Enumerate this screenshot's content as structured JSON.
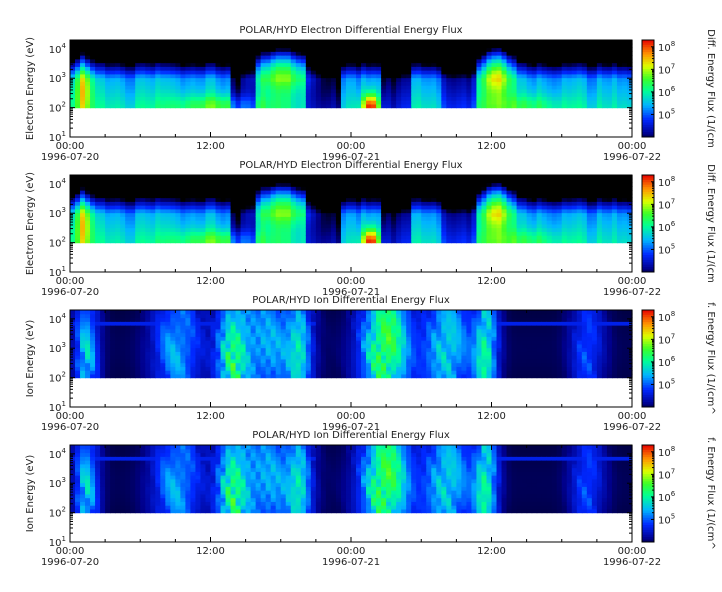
{
  "chart_data": [
    {
      "type": "heatmap",
      "title": "POLAR/HYD  Electron Differential Energy Flux",
      "ylabel": "Electron Energy (eV)",
      "colorbar_label": "Diff. Energy Flux (1/(cm",
      "y_scale": "log",
      "ylim": [
        10,
        20000
      ],
      "y_ticks": [
        {
          "base": "10",
          "exp": "1"
        },
        {
          "base": "10",
          "exp": "2"
        },
        {
          "base": "10",
          "exp": "3"
        },
        {
          "base": "10",
          "exp": "4"
        }
      ],
      "x_ticks": [
        "00:00",
        "12:00",
        "00:00",
        "12:00",
        "00:00"
      ],
      "x_dates": [
        "1996-07-20",
        "",
        "1996-07-21",
        "",
        "1996-07-22"
      ],
      "xlim": [
        "1996-07-20 00:00",
        "1996-07-22 00:00"
      ],
      "cbar_ticks": [
        {
          "base": "10",
          "exp": "5"
        },
        {
          "base": "10",
          "exp": "6"
        },
        {
          "base": "10",
          "exp": "7"
        },
        {
          "base": "10",
          "exp": "8"
        }
      ],
      "cbar_range": [
        10000,
        200000000
      ],
      "species": "electron"
    },
    {
      "type": "heatmap",
      "title": "POLAR/HYD  Electron Differential Energy Flux",
      "ylabel": "Electron Energy (eV)",
      "colorbar_label": "Diff. Energy Flux (1/(cm",
      "y_scale": "log",
      "ylim": [
        10,
        20000
      ],
      "y_ticks": [
        {
          "base": "10",
          "exp": "1"
        },
        {
          "base": "10",
          "exp": "2"
        },
        {
          "base": "10",
          "exp": "3"
        },
        {
          "base": "10",
          "exp": "4"
        }
      ],
      "x_ticks": [
        "00:00",
        "12:00",
        "00:00",
        "12:00",
        "00:00"
      ],
      "x_dates": [
        "1996-07-20",
        "",
        "1996-07-21",
        "",
        "1996-07-22"
      ],
      "xlim": [
        "1996-07-20 00:00",
        "1996-07-22 00:00"
      ],
      "cbar_ticks": [
        {
          "base": "10",
          "exp": "5"
        },
        {
          "base": "10",
          "exp": "6"
        },
        {
          "base": "10",
          "exp": "7"
        },
        {
          "base": "10",
          "exp": "8"
        }
      ],
      "cbar_range": [
        10000,
        200000000
      ],
      "species": "electron"
    },
    {
      "type": "heatmap",
      "title": "POLAR/HYD  Ion Differential Energy Flux",
      "ylabel": "Ion Energy (eV)",
      "colorbar_label": "f. Energy Flux (1/(cm^",
      "y_scale": "log",
      "ylim": [
        10,
        20000
      ],
      "y_ticks": [
        {
          "base": "10",
          "exp": "1"
        },
        {
          "base": "10",
          "exp": "2"
        },
        {
          "base": "10",
          "exp": "3"
        },
        {
          "base": "10",
          "exp": "4"
        }
      ],
      "x_ticks": [
        "00:00",
        "12:00",
        "00:00",
        "12:00",
        "00:00"
      ],
      "x_dates": [
        "1996-07-20",
        "",
        "1996-07-21",
        "",
        "1996-07-22"
      ],
      "xlim": [
        "1996-07-20 00:00",
        "1996-07-22 00:00"
      ],
      "cbar_ticks": [
        {
          "base": "10",
          "exp": "5"
        },
        {
          "base": "10",
          "exp": "6"
        },
        {
          "base": "10",
          "exp": "7"
        },
        {
          "base": "10",
          "exp": "8"
        }
      ],
      "cbar_range": [
        10000,
        200000000
      ],
      "species": "ion"
    },
    {
      "type": "heatmap",
      "title": "POLAR/HYD  Ion Differential Energy Flux",
      "ylabel": "Ion Energy (eV)",
      "colorbar_label": "f. Energy Flux (1/(cm^",
      "y_scale": "log",
      "ylim": [
        10,
        20000
      ],
      "y_ticks": [
        {
          "base": "10",
          "exp": "1"
        },
        {
          "base": "10",
          "exp": "2"
        },
        {
          "base": "10",
          "exp": "3"
        },
        {
          "base": "10",
          "exp": "4"
        }
      ],
      "x_ticks": [
        "00:00",
        "12:00",
        "00:00",
        "12:00",
        "00:00"
      ],
      "x_dates": [
        "1996-07-20",
        "",
        "1996-07-21",
        "",
        "1996-07-22"
      ],
      "xlim": [
        "1996-07-20 00:00",
        "1996-07-22 00:00"
      ],
      "cbar_ticks": [
        {
          "base": "10",
          "exp": "5"
        },
        {
          "base": "10",
          "exp": "6"
        },
        {
          "base": "10",
          "exp": "7"
        },
        {
          "base": "10",
          "exp": "8"
        }
      ],
      "cbar_range": [
        10000,
        200000000
      ],
      "species": "ion"
    }
  ]
}
